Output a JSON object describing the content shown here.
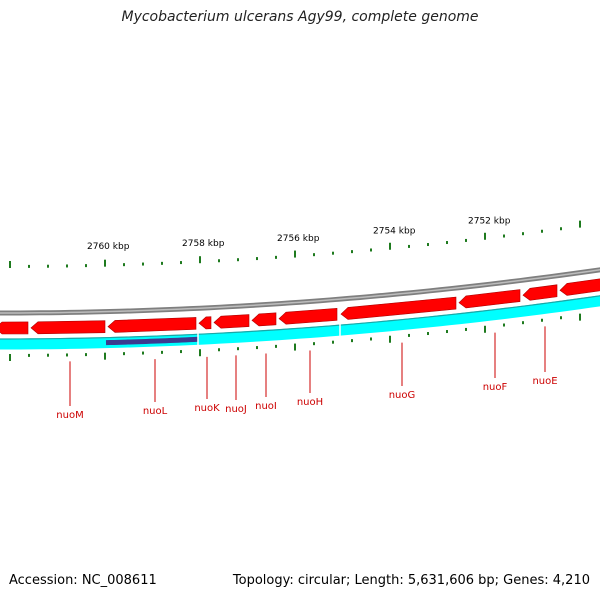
{
  "title": "Mycobacterium ulcerans Agy99, complete genome",
  "footer": {
    "accession": "Accession: NC_008611",
    "summary": "Topology: circular; Length: 5,631,606 bp; Genes: 4,210"
  },
  "colors": {
    "backbone": "#7f7f7f",
    "forward_gene": "#ff0000",
    "reverse_gene": "#00ffff",
    "highlight_gene": "#3b3b8f",
    "tick": "#1e7a1e",
    "label_line": "#cc0000",
    "label_text": "#cc0000"
  },
  "scale": {
    "unit": "kbp",
    "major_labels": [
      "2760 kbp",
      "2758 kbp",
      "2756 kbp",
      "2754 kbp",
      "2752 kbp"
    ]
  },
  "genes": [
    {
      "name": "nuoM",
      "strand": "forward"
    },
    {
      "name": "nuoL",
      "strand": "forward"
    },
    {
      "name": "nuoK",
      "strand": "forward"
    },
    {
      "name": "nuoJ",
      "strand": "forward"
    },
    {
      "name": "nuoI",
      "strand": "forward"
    },
    {
      "name": "nuoH",
      "strand": "forward"
    },
    {
      "name": "nuoG",
      "strand": "forward"
    },
    {
      "name": "nuoF",
      "strand": "forward"
    },
    {
      "name": "nuoE",
      "strand": "forward"
    }
  ]
}
